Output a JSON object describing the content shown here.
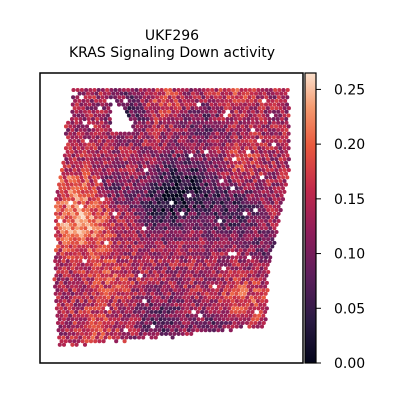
{
  "chart_data": {
    "type": "heatmap",
    "title": "UKF296",
    "subtitle": "KRAS Signaling Down activity",
    "xlabel": "",
    "ylabel": "",
    "colorbar": {
      "colormap": "rocket",
      "range": [
        0.0,
        0.265
      ],
      "ticks": [
        0.0,
        0.05,
        0.1,
        0.15,
        0.2,
        0.25
      ],
      "tick_labels": [
        "0.00",
        "0.05",
        "0.10",
        "0.15",
        "0.20",
        "0.25"
      ],
      "placement": "right"
    },
    "grid": false,
    "description_of_values": "hexagonal spatial spots; activity mostly 0.08–0.20, darker (~0.02) patches in upper-center, brighter (~0.22) on left edge"
  }
}
